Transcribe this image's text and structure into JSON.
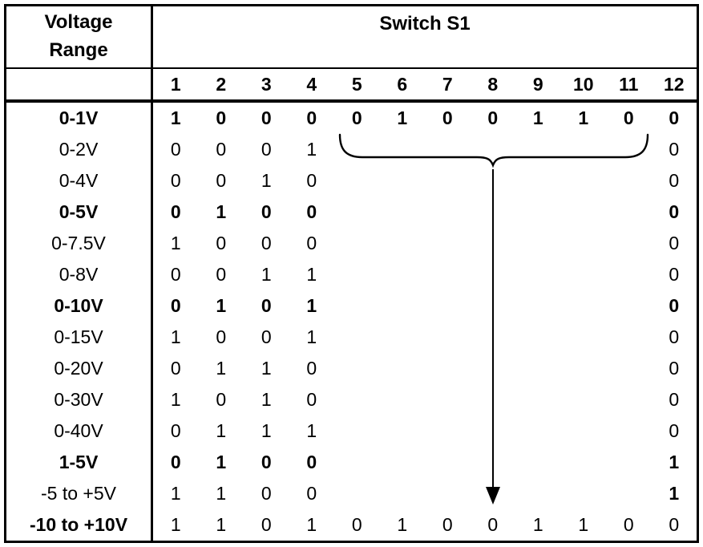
{
  "table": {
    "header": {
      "range_title_line1": "Voltage",
      "range_title_line2": "Range",
      "switch_title": "Switch S1",
      "switch_numbers": [
        "1",
        "2",
        "3",
        "4",
        "5",
        "6",
        "7",
        "8",
        "9",
        "10",
        "11",
        "12"
      ]
    },
    "rows": [
      {
        "range": "0-1V",
        "label_bold": true,
        "values_bold": true,
        "bold_cells": [],
        "values": [
          "1",
          "0",
          "0",
          "0",
          "0",
          "1",
          "0",
          "0",
          "1",
          "1",
          "0",
          "0"
        ]
      },
      {
        "range": "0-2V",
        "label_bold": false,
        "values_bold": false,
        "bold_cells": [],
        "values": [
          "0",
          "0",
          "0",
          "1",
          "",
          "",
          "",
          "",
          "",
          "",
          "",
          "0"
        ]
      },
      {
        "range": "0-4V",
        "label_bold": false,
        "values_bold": false,
        "bold_cells": [],
        "values": [
          "0",
          "0",
          "1",
          "0",
          "",
          "",
          "",
          "",
          "",
          "",
          "",
          "0"
        ]
      },
      {
        "range": "0-5V",
        "label_bold": true,
        "values_bold": true,
        "bold_cells": [],
        "values": [
          "0",
          "1",
          "0",
          "0",
          "",
          "",
          "",
          "",
          "",
          "",
          "",
          "0"
        ]
      },
      {
        "range": "0-7.5V",
        "label_bold": false,
        "values_bold": false,
        "bold_cells": [],
        "values": [
          "1",
          "0",
          "0",
          "0",
          "",
          "",
          "",
          "",
          "",
          "",
          "",
          "0"
        ]
      },
      {
        "range": "0-8V",
        "label_bold": false,
        "values_bold": false,
        "bold_cells": [],
        "values": [
          "0",
          "0",
          "1",
          "1",
          "",
          "",
          "",
          "",
          "",
          "",
          "",
          "0"
        ]
      },
      {
        "range": "0-10V",
        "label_bold": true,
        "values_bold": true,
        "bold_cells": [],
        "values": [
          "0",
          "1",
          "0",
          "1",
          "",
          "",
          "",
          "",
          "",
          "",
          "",
          "0"
        ]
      },
      {
        "range": "0-15V",
        "label_bold": false,
        "values_bold": false,
        "bold_cells": [],
        "values": [
          "1",
          "0",
          "0",
          "1",
          "",
          "",
          "",
          "",
          "",
          "",
          "",
          "0"
        ]
      },
      {
        "range": "0-20V",
        "label_bold": false,
        "values_bold": false,
        "bold_cells": [],
        "values": [
          "0",
          "1",
          "1",
          "0",
          "",
          "",
          "",
          "",
          "",
          "",
          "",
          "0"
        ]
      },
      {
        "range": "0-30V",
        "label_bold": false,
        "values_bold": false,
        "bold_cells": [],
        "values": [
          "1",
          "0",
          "1",
          "0",
          "",
          "",
          "",
          "",
          "",
          "",
          "",
          "0"
        ]
      },
      {
        "range": "0-40V",
        "label_bold": false,
        "values_bold": false,
        "bold_cells": [],
        "values": [
          "0",
          "1",
          "1",
          "1",
          "",
          "",
          "",
          "",
          "",
          "",
          "",
          "0"
        ]
      },
      {
        "range": "1-5V",
        "label_bold": true,
        "values_bold": true,
        "bold_cells": [],
        "values": [
          "0",
          "1",
          "0",
          "0",
          "",
          "",
          "",
          "",
          "",
          "",
          "",
          "1"
        ]
      },
      {
        "range": "-5 to +5V",
        "label_bold": false,
        "values_bold": false,
        "bold_cells": [
          12
        ],
        "values": [
          "1",
          "1",
          "0",
          "0",
          "",
          "",
          "",
          "",
          "",
          "",
          "",
          "1"
        ]
      },
      {
        "range": "-10 to +10V",
        "label_bold": true,
        "values_bold": false,
        "bold_cells": [],
        "values": [
          "1",
          "1",
          "0",
          "1",
          "0",
          "1",
          "0",
          "0",
          "1",
          "1",
          "0",
          "0"
        ]
      }
    ]
  },
  "annotations": {
    "brace_icon": "curly-underbrace-switches-5-11",
    "arrow_icon": "down-arrow-to-minus5-plus5-row"
  },
  "colors": {
    "text": "#000000",
    "background": "#ffffff",
    "border": "#000000"
  }
}
